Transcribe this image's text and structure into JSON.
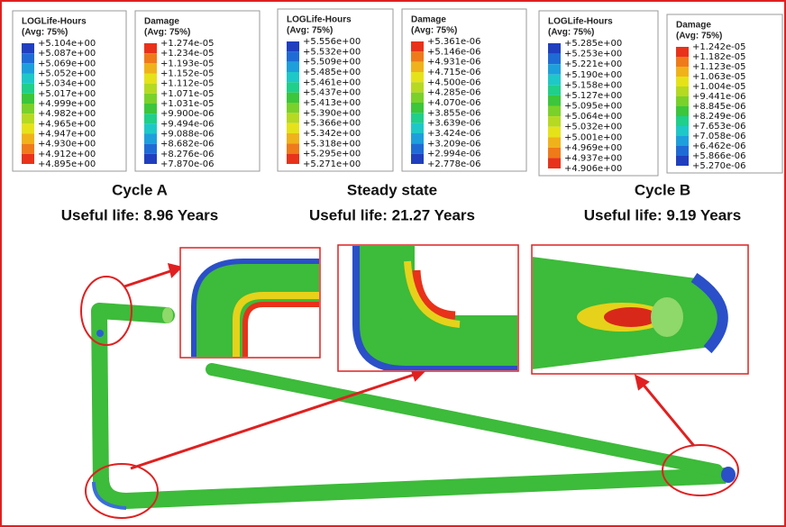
{
  "panels": [
    {
      "legends": [
        {
          "title": "LOGLife-Hours",
          "subtitle": "(Avg: 75%)",
          "values": [
            "+5.104e+00",
            "+5.087e+00",
            "+5.069e+00",
            "+5.052e+00",
            "+5.034e+00",
            "+5.017e+00",
            "+4.999e+00",
            "+4.982e+00",
            "+4.965e+00",
            "+4.947e+00",
            "+4.930e+00",
            "+4.912e+00",
            "+4.895e+00"
          ]
        },
        {
          "title": "Damage",
          "subtitle": "(Avg: 75%)",
          "values": [
            "+1.274e-05",
            "+1.234e-05",
            "+1.193e-05",
            "+1.152e-05",
            "+1.112e-05",
            "+1.071e-05",
            "+1.031e-05",
            "+9.900e-06",
            "+9.494e-06",
            "+9.088e-06",
            "+8.682e-06",
            "+8.276e-06",
            "+7.870e-06"
          ]
        }
      ],
      "caption": "Cycle A",
      "life": "Useful life: 8.96 Years"
    },
    {
      "legends": [
        {
          "title": "LOGLife-Hours",
          "subtitle": "(Avg: 75%)",
          "values": [
            "+5.556e+00",
            "+5.532e+00",
            "+5.509e+00",
            "+5.485e+00",
            "+5.461e+00",
            "+5.437e+00",
            "+5.413e+00",
            "+5.390e+00",
            "+5.366e+00",
            "+5.342e+00",
            "+5.318e+00",
            "+5.295e+00",
            "+5.271e+00"
          ]
        },
        {
          "title": "Damage",
          "subtitle": "(Avg: 75%)",
          "values": [
            "+5.361e-06",
            "+5.146e-06",
            "+4.931e-06",
            "+4.715e-06",
            "+4.500e-06",
            "+4.285e-06",
            "+4.070e-06",
            "+3.855e-06",
            "+3.639e-06",
            "+3.424e-06",
            "+3.209e-06",
            "+2.994e-06",
            "+2.778e-06"
          ]
        }
      ],
      "caption": "Steady state",
      "life": "Useful life: 21.27 Years"
    },
    {
      "legends": [
        {
          "title": "LOGLife-Hours",
          "subtitle": "(Avg: 75%)",
          "values": [
            "+5.285e+00",
            "+5.253e+00",
            "+5.221e+00",
            "+5.190e+00",
            "+5.158e+00",
            "+5.127e+00",
            "+5.095e+00",
            "+5.064e+00",
            "+5.032e+00",
            "+5.001e+00",
            "+4.969e+00",
            "+4.937e+00",
            "+4.906e+00"
          ]
        },
        {
          "title": "Damage",
          "subtitle": "(Avg: 75%)",
          "values": [
            "+1.242e-05",
            "+1.182e-05",
            "+1.123e-05",
            "+1.063e-05",
            "+1.004e-05",
            "+9.441e-06",
            "+8.845e-06",
            "+8.249e-06",
            "+7.653e-06",
            "+7.058e-06",
            "+6.462e-06",
            "+5.866e-06",
            "+5.270e-06"
          ]
        }
      ],
      "caption": "Cycle B",
      "life": "Useful life: 9.19 Years"
    }
  ]
}
